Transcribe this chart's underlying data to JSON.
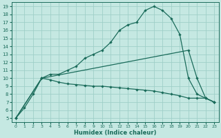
{
  "xlabel": "Humidex (Indice chaleur)",
  "bg_color": "#c5e8e2",
  "grid_color": "#9fcfc8",
  "line_color": "#1a6b5a",
  "xlim": [
    -0.5,
    23.5
  ],
  "ylim": [
    4.5,
    19.5
  ],
  "xticks": [
    0,
    1,
    2,
    3,
    4,
    5,
    6,
    7,
    8,
    9,
    10,
    11,
    12,
    13,
    14,
    15,
    16,
    17,
    18,
    19,
    20,
    21,
    22,
    23
  ],
  "yticks": [
    5,
    6,
    7,
    8,
    9,
    10,
    11,
    12,
    13,
    14,
    15,
    16,
    17,
    18,
    19
  ],
  "curve1_x": [
    0,
    1,
    2,
    3,
    4,
    5,
    6,
    7,
    8,
    9,
    10,
    11,
    12,
    13,
    14,
    15,
    16,
    17,
    18,
    19,
    20,
    21,
    22,
    23
  ],
  "curve1_y": [
    5,
    6.3,
    8.0,
    10.0,
    10.5,
    10.5,
    11.0,
    11.5,
    12.5,
    13.0,
    13.5,
    14.5,
    16.0,
    16.7,
    17.0,
    18.5,
    19.0,
    18.5,
    17.5,
    15.5,
    10.0,
    8.0,
    7.5,
    7.0
  ],
  "curve2_x": [
    0,
    3,
    4,
    5,
    6,
    7,
    8,
    9,
    10,
    11,
    12,
    13,
    14,
    15,
    16,
    17,
    18,
    19,
    20,
    21,
    22,
    23
  ],
  "curve2_y": [
    5,
    10.0,
    9.8,
    9.5,
    9.3,
    9.2,
    9.1,
    9.0,
    9.0,
    8.9,
    8.8,
    8.7,
    8.6,
    8.5,
    8.4,
    8.2,
    8.0,
    7.8,
    7.5,
    7.5,
    7.5,
    7.0
  ],
  "curve3_x": [
    0,
    3,
    20,
    21,
    22,
    23
  ],
  "curve3_y": [
    5,
    10.0,
    13.5,
    10.0,
    7.5,
    7.0
  ]
}
